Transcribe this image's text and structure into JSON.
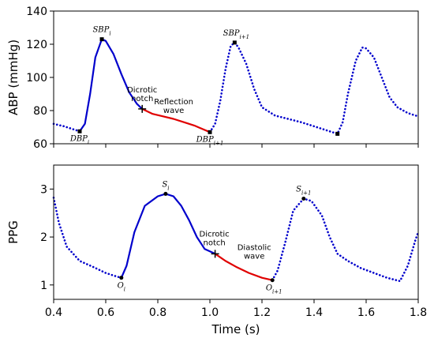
{
  "chart_data": [
    {
      "type": "line",
      "ylabel": "ABP (mmHg)",
      "xlim": [
        0.4,
        1.8
      ],
      "ylim": [
        60,
        140
      ],
      "yticks": [
        60,
        80,
        100,
        120,
        140
      ],
      "series": [
        {
          "style": "dotted",
          "color": "#0000cc",
          "points": [
            [
              0.4,
              72
            ],
            [
              0.44,
              70.5
            ],
            [
              0.48,
              68.5
            ],
            [
              0.5,
              67.5
            ]
          ]
        },
        {
          "style": "solid",
          "color": "#0000cc",
          "points": [
            [
              0.5,
              67.5
            ],
            [
              0.52,
              72
            ],
            [
              0.54,
              90
            ],
            [
              0.56,
              112
            ],
            [
              0.585,
              123
            ],
            [
              0.6,
              122
            ],
            [
              0.63,
              114
            ],
            [
              0.66,
              102
            ],
            [
              0.69,
              91
            ],
            [
              0.72,
              84
            ],
            [
              0.74,
              81
            ]
          ]
        },
        {
          "style": "solid",
          "color": "#e00000",
          "points": [
            [
              0.74,
              81
            ],
            [
              0.78,
              78
            ],
            [
              0.82,
              76.5
            ],
            [
              0.86,
              75
            ],
            [
              0.9,
              73
            ],
            [
              0.94,
              71
            ],
            [
              0.97,
              69
            ],
            [
              1.0,
              67
            ]
          ]
        },
        {
          "style": "dotted",
          "color": "#0000cc",
          "points": [
            [
              1.0,
              67
            ],
            [
              1.02,
              72
            ],
            [
              1.04,
              86
            ],
            [
              1.06,
              105
            ],
            [
              1.08,
              119
            ],
            [
              1.095,
              121
            ],
            [
              1.11,
              118
            ],
            [
              1.14,
              108
            ],
            [
              1.17,
              93
            ],
            [
              1.2,
              82
            ],
            [
              1.25,
              77
            ],
            [
              1.3,
              75
            ],
            [
              1.35,
              73
            ],
            [
              1.4,
              70.5
            ],
            [
              1.45,
              68
            ],
            [
              1.49,
              66
            ],
            [
              1.51,
              73
            ],
            [
              1.53,
              90
            ],
            [
              1.56,
              110
            ],
            [
              1.585,
              118
            ],
            [
              1.6,
              117.5
            ],
            [
              1.63,
              112
            ],
            [
              1.66,
              100
            ],
            [
              1.69,
              88
            ],
            [
              1.72,
              82
            ],
            [
              1.76,
              78.5
            ],
            [
              1.8,
              76.5
            ]
          ]
        }
      ],
      "annotations": [
        {
          "text": "SBP",
          "sub": "i",
          "x": 0.585,
          "y": 123,
          "marker": "square"
        },
        {
          "text": "DBP",
          "sub": "i",
          "x": 0.5,
          "y": 67.5,
          "marker": "square"
        },
        {
          "text": "SBP",
          "sub": "i+1",
          "x": 1.095,
          "y": 121,
          "marker": "square"
        },
        {
          "text": "DBP",
          "sub": "i+1",
          "x": 1.0,
          "y": 67,
          "marker": "square"
        },
        {
          "text": "",
          "sub": "",
          "x": 1.49,
          "y": 66,
          "marker": "square"
        },
        {
          "text": "Dicrotic\nnotch",
          "sub": "",
          "x": 0.74,
          "y": 81,
          "marker": "plus"
        },
        {
          "text": "Reflection\nwave",
          "sub": "",
          "x": 0.87,
          "y": 78,
          "marker": "none"
        }
      ]
    },
    {
      "type": "line",
      "ylabel": "PPG",
      "xlabel": "Time (s)",
      "xlim": [
        0.4,
        1.8
      ],
      "ylim": [
        0.7,
        3.5
      ],
      "yticks": [
        1,
        2,
        3
      ],
      "xticks": [
        0.4,
        0.6,
        0.8,
        1.0,
        1.2,
        1.4,
        1.6,
        1.8
      ],
      "xtick_labels": [
        "0.4",
        "0.6",
        "0.8",
        "1.0",
        "1.2",
        "1.4",
        "1.6",
        "1.8"
      ],
      "series": [
        {
          "style": "dotted",
          "color": "#0000cc",
          "points": [
            [
              0.4,
              2.82
            ],
            [
              0.42,
              2.3
            ],
            [
              0.45,
              1.8
            ],
            [
              0.5,
              1.5
            ],
            [
              0.55,
              1.38
            ],
            [
              0.6,
              1.25
            ],
            [
              0.64,
              1.18
            ],
            [
              0.66,
              1.15
            ]
          ]
        },
        {
          "style": "solid",
          "color": "#0000cc",
          "points": [
            [
              0.66,
              1.15
            ],
            [
              0.68,
              1.4
            ],
            [
              0.71,
              2.1
            ],
            [
              0.75,
              2.65
            ],
            [
              0.8,
              2.85
            ],
            [
              0.83,
              2.9
            ],
            [
              0.86,
              2.85
            ],
            [
              0.89,
              2.65
            ],
            [
              0.92,
              2.35
            ],
            [
              0.95,
              2.0
            ],
            [
              0.98,
              1.75
            ],
            [
              1.02,
              1.65
            ]
          ]
        },
        {
          "style": "solid",
          "color": "#e00000",
          "points": [
            [
              1.02,
              1.65
            ],
            [
              1.06,
              1.5
            ],
            [
              1.1,
              1.38
            ],
            [
              1.15,
              1.25
            ],
            [
              1.2,
              1.15
            ],
            [
              1.24,
              1.1
            ]
          ]
        },
        {
          "style": "dotted",
          "color": "#0000cc",
          "points": [
            [
              1.24,
              1.1
            ],
            [
              1.26,
              1.3
            ],
            [
              1.29,
              1.9
            ],
            [
              1.32,
              2.55
            ],
            [
              1.36,
              2.8
            ],
            [
              1.39,
              2.75
            ],
            [
              1.43,
              2.45
            ],
            [
              1.46,
              2.0
            ],
            [
              1.49,
              1.65
            ],
            [
              1.53,
              1.5
            ],
            [
              1.58,
              1.35
            ],
            [
              1.63,
              1.25
            ],
            [
              1.68,
              1.15
            ],
            [
              1.73,
              1.08
            ],
            [
              1.76,
              1.4
            ],
            [
              1.79,
              1.95
            ],
            [
              1.8,
              2.1
            ]
          ]
        }
      ],
      "annotations": [
        {
          "text": "S",
          "sub": "i",
          "x": 0.83,
          "y": 2.9,
          "marker": "dot"
        },
        {
          "text": "O",
          "sub": "i",
          "x": 0.66,
          "y": 1.15,
          "marker": "dot"
        },
        {
          "text": "S",
          "sub": "i+1",
          "x": 1.36,
          "y": 2.8,
          "marker": "dot"
        },
        {
          "text": "O",
          "sub": "i+1",
          "x": 1.24,
          "y": 1.1,
          "marker": "dot"
        },
        {
          "text": "Dicrotic\nnotch",
          "sub": "",
          "x": 1.02,
          "y": 1.65,
          "marker": "plus"
        },
        {
          "text": "Diastolic\nwave",
          "sub": "",
          "x": 1.14,
          "y": 1.5,
          "marker": "none"
        }
      ]
    }
  ]
}
